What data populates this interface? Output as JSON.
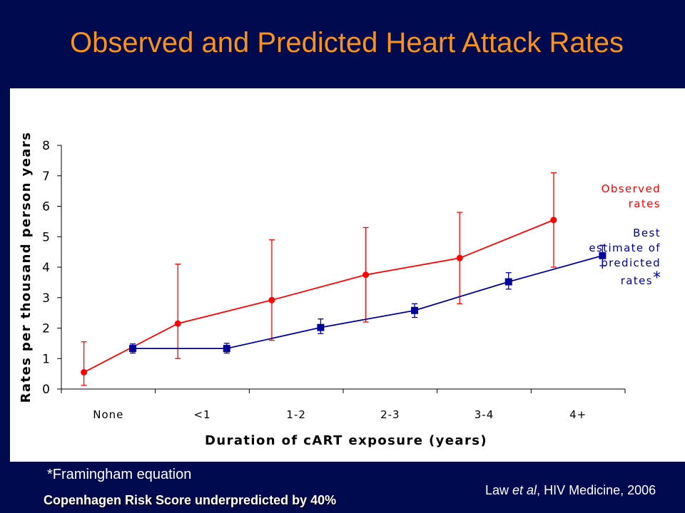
{
  "slide": {
    "title": "Observed and Predicted Heart Attack Rates",
    "footnote": "*Framingham equation",
    "bottom_note": "Copenhagen Risk Score underpredicted by 40%",
    "source_author": "Law ",
    "source_etal": "et al",
    "source_rest": ", HIV Medicine, 2006"
  },
  "legend": {
    "observed_line1": "Observed",
    "observed_line2": "rates",
    "predicted_line1": "Best",
    "predicted_line2": "estimate of",
    "predicted_line3": "predicted",
    "predicted_line4": "rates",
    "predicted_marker": "*"
  },
  "colors": {
    "background": "#000a4e",
    "title": "#f7931d",
    "observed": "#ff0000",
    "predicted": "#000099"
  },
  "chart_data": {
    "type": "line",
    "categories": [
      "None",
      "<1",
      "1-2",
      "2-3",
      "3-4",
      "4+"
    ],
    "xlabel": "Duration of cART exposure (years)",
    "ylabel": "Rates per thousand person years",
    "ylim": [
      0,
      8
    ],
    "yticks": [
      0,
      1,
      2,
      3,
      4,
      5,
      6,
      7,
      8
    ],
    "grid": false,
    "legend_position": "right",
    "series": [
      {
        "name": "Observed rates",
        "color": "#ff0000",
        "marker": "circle",
        "values": [
          0.55,
          2.15,
          2.92,
          3.75,
          4.3,
          5.55
        ],
        "err_low": [
          0.12,
          1.0,
          1.6,
          2.2,
          2.8,
          4.0
        ],
        "err_high": [
          1.55,
          4.1,
          4.9,
          5.3,
          5.8,
          7.1
        ]
      },
      {
        "name": "Best estimate of predicted rates*",
        "color": "#000099",
        "marker": "square",
        "values": [
          1.33,
          1.33,
          2.02,
          2.58,
          3.52,
          4.38
        ],
        "err_low": [
          1.18,
          1.18,
          1.82,
          2.35,
          3.28,
          4.05
        ],
        "err_high": [
          1.48,
          1.5,
          2.3,
          2.8,
          3.82,
          4.72
        ]
      }
    ]
  }
}
